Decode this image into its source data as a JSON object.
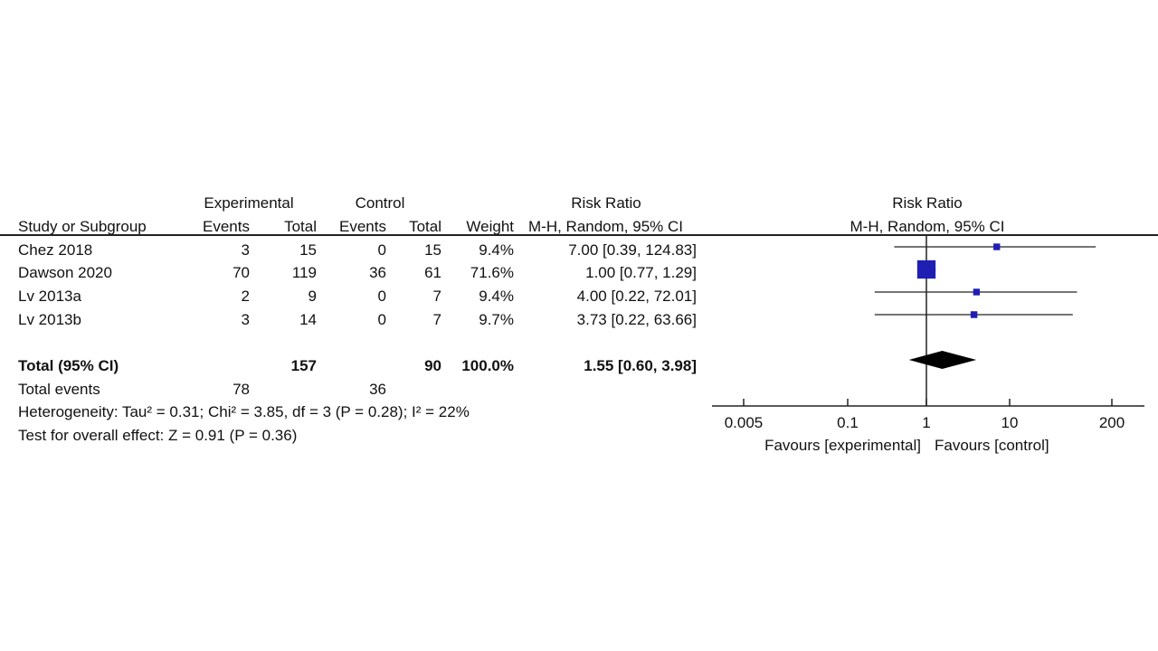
{
  "header": {
    "experimental": "Experimental",
    "control": "Control",
    "risk_ratio": "Risk Ratio",
    "study_col": "Study or Subgroup",
    "events": "Events",
    "total": "Total",
    "weight": "Weight",
    "method": "M-H, Random, 95% CI"
  },
  "studies": [
    {
      "name": "Chez 2018",
      "exp_events": "3",
      "exp_total": "15",
      "ctl_events": "0",
      "ctl_total": "15",
      "weight": "9.4%",
      "ci_text": "7.00 [0.39, 124.83]"
    },
    {
      "name": "Dawson 2020",
      "exp_events": "70",
      "exp_total": "119",
      "ctl_events": "36",
      "ctl_total": "61",
      "weight": "71.6%",
      "ci_text": "1.00 [0.77, 1.29]"
    },
    {
      "name": "Lv 2013a",
      "exp_events": "2",
      "exp_total": "9",
      "ctl_events": "0",
      "ctl_total": "7",
      "weight": "9.4%",
      "ci_text": "4.00 [0.22, 72.01]"
    },
    {
      "name": "Lv 2013b",
      "exp_events": "3",
      "exp_total": "14",
      "ctl_events": "0",
      "ctl_total": "7",
      "weight": "9.7%",
      "ci_text": "3.73 [0.22, 63.66]"
    }
  ],
  "total": {
    "label": "Total (95% CI)",
    "exp_total": "157",
    "ctl_total": "90",
    "weight": "100.0%",
    "ci_text": "1.55 [0.60, 3.98]"
  },
  "total_events": {
    "label": "Total events",
    "exp": "78",
    "ctl": "36"
  },
  "heterogeneity": "Heterogeneity: Tau² = 0.31; Chi² = 3.85, df = 3 (P = 0.28); I² = 22%",
  "overall_effect": "Test for overall effect: Z = 0.91 (P = 0.36)",
  "plot": {
    "title": "Risk Ratio",
    "subtitle": "M-H, Random, 95% CI",
    "favours_left": "Favours [experimental]",
    "favours_right": "Favours [control]"
  },
  "colors": {
    "marker": "#1f1fb4",
    "diamond": "#000000",
    "line": "#222222"
  },
  "chart_data": {
    "type": "scatter",
    "scale": "log",
    "x_axis_ticks": [
      0.005,
      0.1,
      1,
      10,
      200
    ],
    "x_tick_labels": [
      "0.005",
      "0.1",
      "1",
      "10",
      "200"
    ],
    "xlim": [
      0.005,
      200
    ],
    "null_line": 1,
    "series": [
      {
        "points": [
          {
            "study": "Chez 2018",
            "rr": 7.0,
            "lower": 0.39,
            "upper": 124.83,
            "weight": 9.4
          },
          {
            "study": "Dawson 2020",
            "rr": 1.0,
            "lower": 0.77,
            "upper": 1.29,
            "weight": 71.6
          },
          {
            "study": "Lv 2013a",
            "rr": 4.0,
            "lower": 0.22,
            "upper": 72.01,
            "weight": 9.4
          },
          {
            "study": "Lv 2013b",
            "rr": 3.73,
            "lower": 0.22,
            "upper": 63.66,
            "weight": 9.7
          }
        ]
      }
    ],
    "pooled": {
      "rr": 1.55,
      "lower": 0.6,
      "upper": 3.98
    }
  }
}
